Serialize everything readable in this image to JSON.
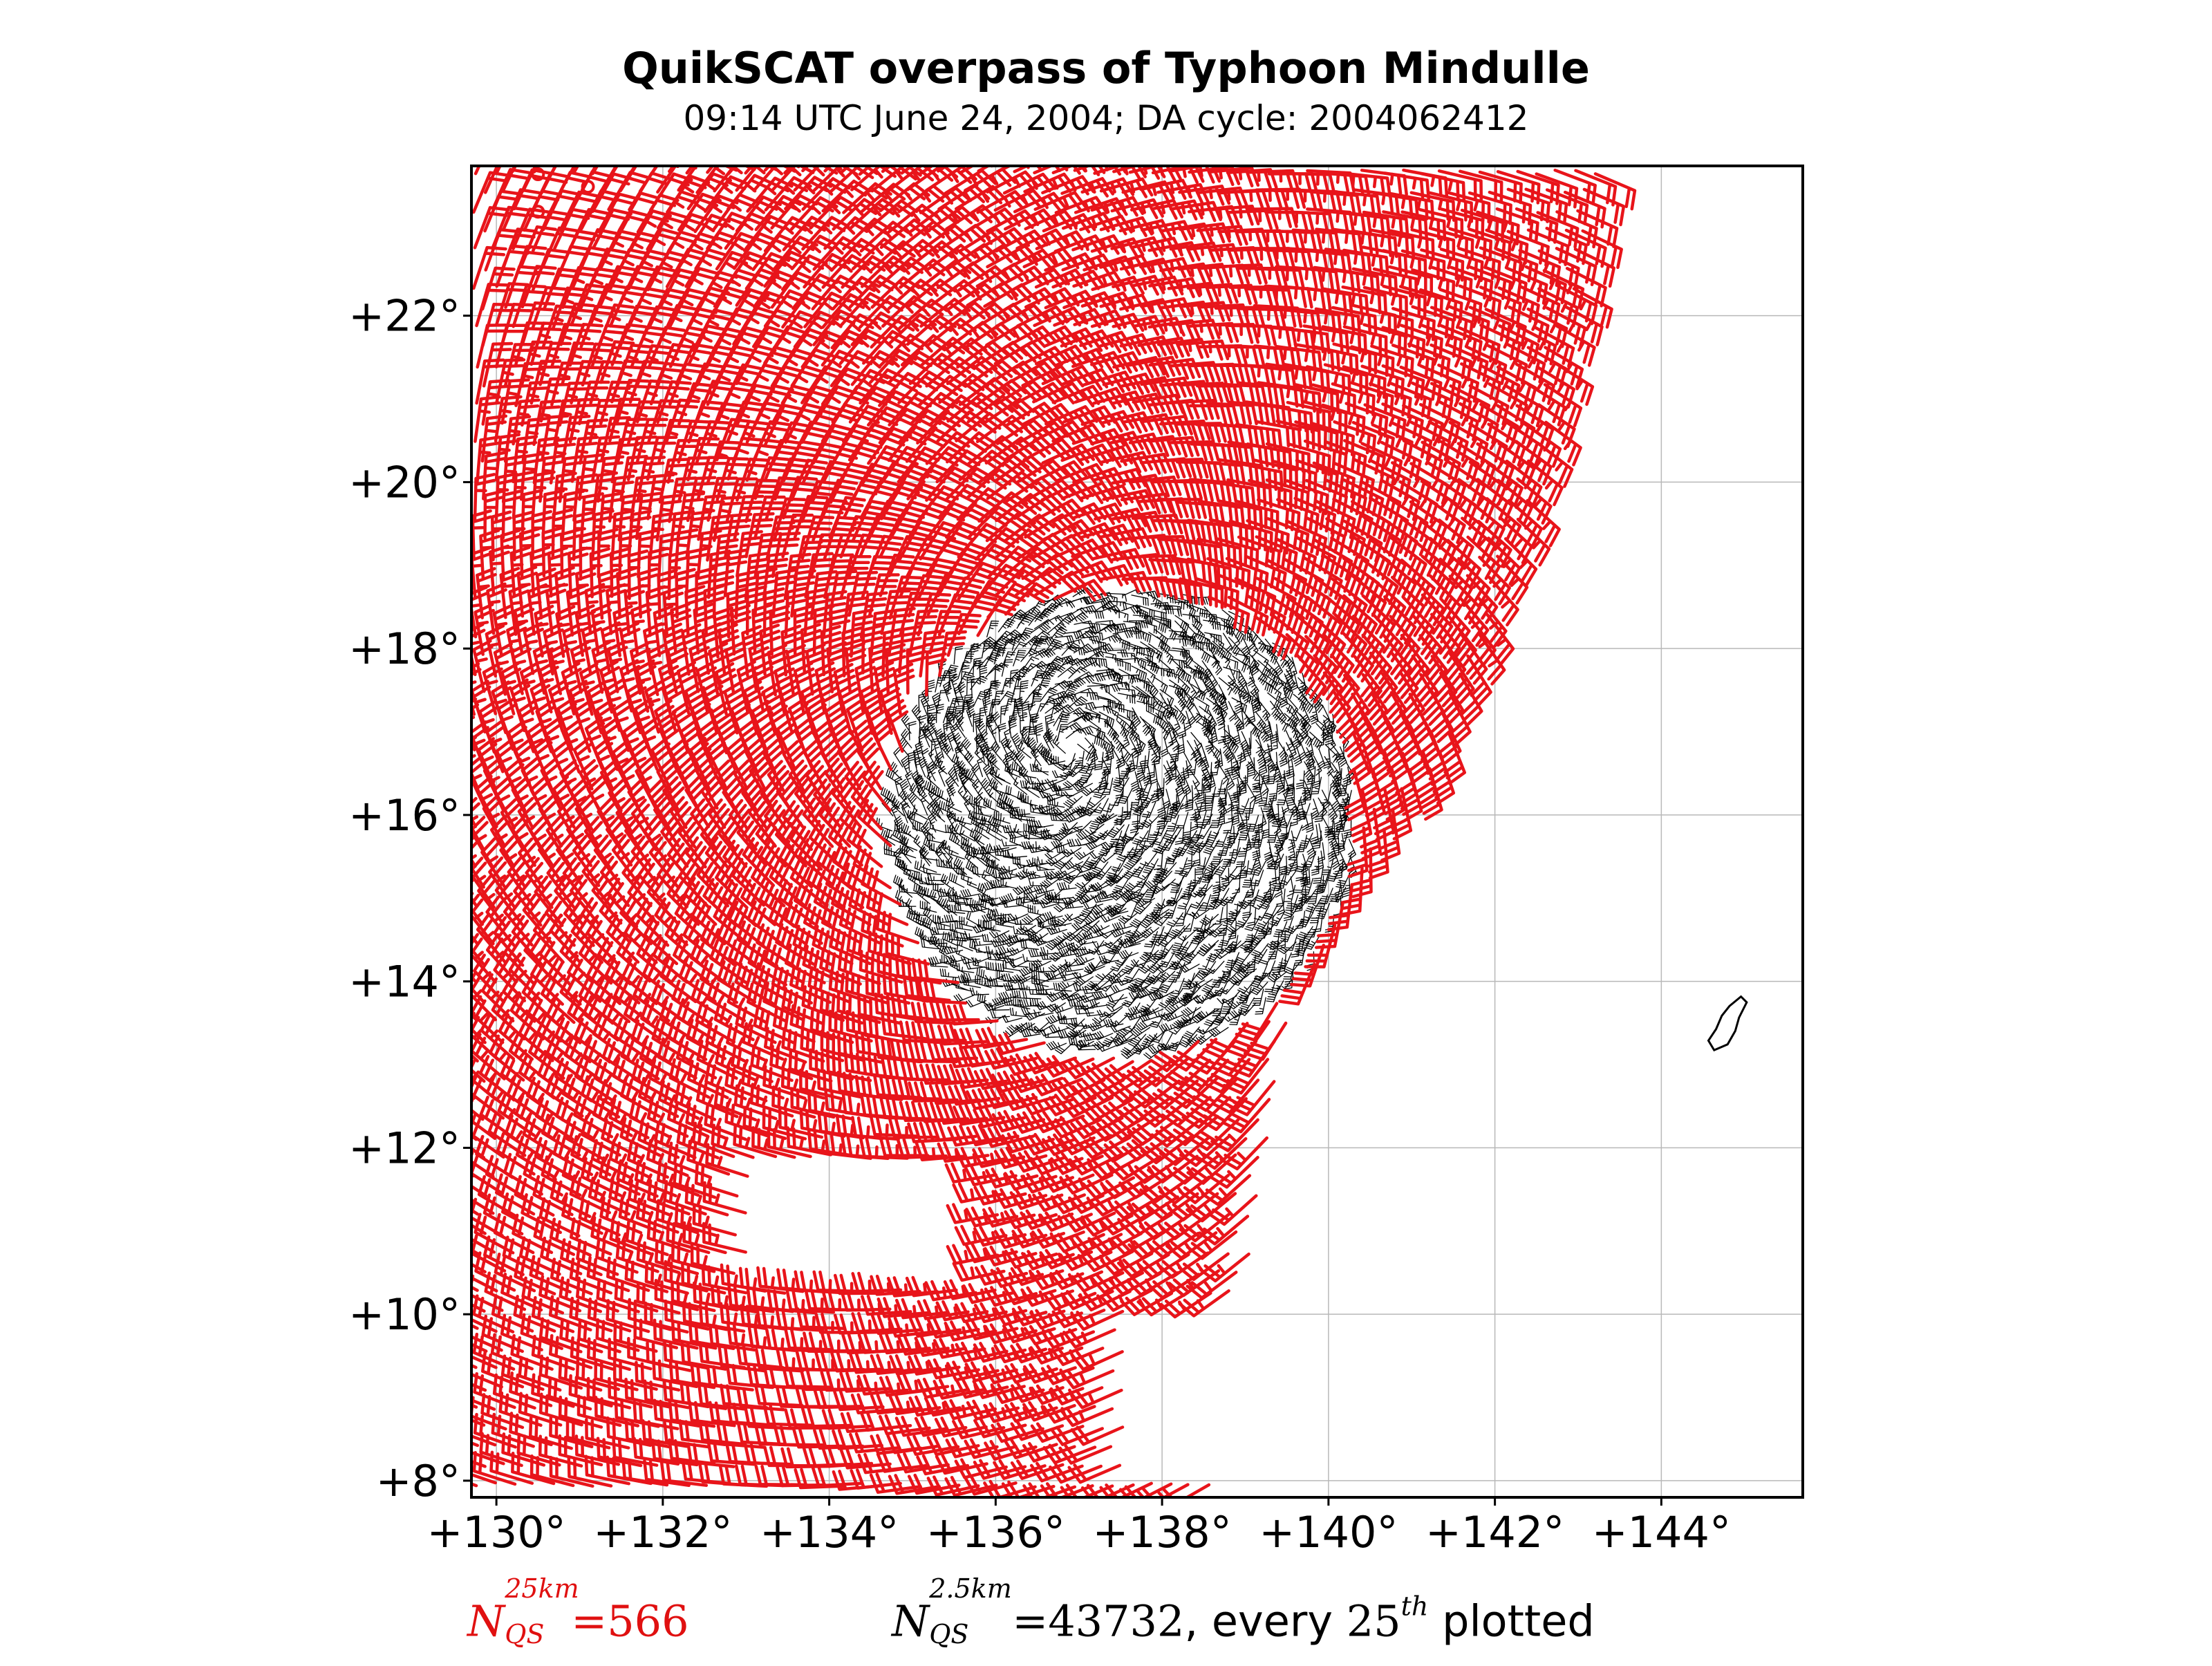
{
  "title": "QuikSCAT overpass of Typhoon Mindulle",
  "subtitle": "09:14 UTC June 24, 2004; DA cycle: 2004062412",
  "colors": {
    "coarse_barbs": "#e8141a",
    "fine_barbs": "#000000",
    "grid": "#b8b8b8",
    "frame": "#000000"
  },
  "chart_data": {
    "type": "scatter",
    "projection": "map",
    "xlim": [
      129.7,
      145.7
    ],
    "ylim": [
      7.8,
      23.8
    ],
    "x_ticks": [
      130,
      132,
      134,
      136,
      138,
      140,
      142,
      144
    ],
    "y_ticks": [
      8,
      10,
      12,
      14,
      16,
      18,
      20,
      22
    ],
    "x_tick_labels": [
      "+130°",
      "+132°",
      "+134°",
      "+136°",
      "+138°",
      "+140°",
      "+142°",
      "+144°"
    ],
    "y_tick_labels": [
      "+8°",
      "+10°",
      "+12°",
      "+14°",
      "+16°",
      "+18°",
      "+20°",
      "+22°"
    ],
    "grid": true,
    "typhoon_center": {
      "lon": 136.9,
      "lat": 16.8
    },
    "fine_region": {
      "center_lon": 137.55,
      "center_lat": 15.95,
      "radius_deg": 2.8
    },
    "swath": {
      "east_edge": [
        [
          138.6,
          8.0
        ],
        [
          139.3,
          12.0
        ],
        [
          139.6,
          13.8
        ],
        [
          141.5,
          17.0
        ],
        [
          142.5,
          20.0
        ],
        [
          143.3,
          23.8
        ]
      ],
      "gaps": [
        {
          "lon_min": 133.0,
          "lon_max": 136.0,
          "lat_min": 10.3,
          "lat_max": 11.7
        },
        {
          "lon_min": 137.6,
          "lon_max": 139.2,
          "lat_min": 8.0,
          "lat_max": 10.2
        }
      ]
    },
    "guam": {
      "lon": 144.75,
      "lat": 13.45
    },
    "series": [
      {
        "name": "QuikSCAT 25 km",
        "count": 566,
        "plotted": "all"
      },
      {
        "name": "QuikSCAT 2.5 km",
        "count": 43732,
        "plotted_every": 25
      }
    ]
  },
  "annotations": {
    "left": {
      "symbol": "N",
      "superscript": "25km",
      "subscript": "QS",
      "equals": "=",
      "value": "566"
    },
    "right": {
      "symbol": "N",
      "superscript": "2.5km",
      "subscript": "QS",
      "equals": "=",
      "value": "43732",
      "suffix_text": ", every ",
      "every_n": "25",
      "every_sup": "th",
      "tail_text": " plotted"
    }
  }
}
